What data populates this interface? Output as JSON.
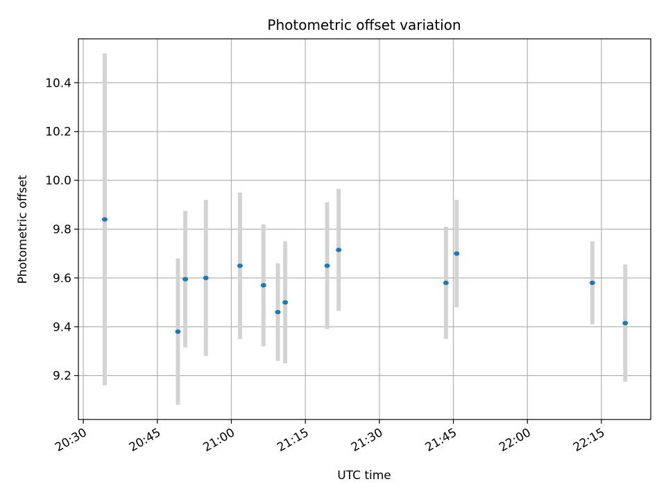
{
  "chart_data": {
    "type": "scatter",
    "title": "Photometric offset variation",
    "xlabel": "UTC time",
    "ylabel": "Photometric offset",
    "x_ticks": [
      "20:30",
      "20:45",
      "21:00",
      "21:15",
      "21:30",
      "21:45",
      "22:00",
      "22:15"
    ],
    "y_ticks": [
      "9.2",
      "9.4",
      "9.6",
      "9.8",
      "10.0",
      "10.2",
      "10.4"
    ],
    "xlim": [
      "20:29",
      "22:25"
    ],
    "ylim": [
      9.02,
      10.58
    ],
    "grid": true,
    "colors": {
      "point": "#1f77b4",
      "errorbar": "#d3d3d3",
      "grid": "#b0b0b0"
    },
    "series": [
      {
        "points": [
          {
            "x": "20:34:20",
            "y": 9.84,
            "yerr": 0.68
          },
          {
            "x": "20:49:10",
            "y": 9.38,
            "yerr": 0.3
          },
          {
            "x": "20:50:40",
            "y": 9.595,
            "yerr": 0.28
          },
          {
            "x": "20:54:50",
            "y": 9.6,
            "yerr": 0.32
          },
          {
            "x": "21:01:45",
            "y": 9.65,
            "yerr": 0.3
          },
          {
            "x": "21:06:30",
            "y": 9.57,
            "yerr": 0.25
          },
          {
            "x": "21:09:25",
            "y": 9.46,
            "yerr": 0.2
          },
          {
            "x": "21:10:55",
            "y": 9.5,
            "yerr": 0.25
          },
          {
            "x": "21:19:25",
            "y": 9.65,
            "yerr": 0.26
          },
          {
            "x": "21:21:45",
            "y": 9.715,
            "yerr": 0.25
          },
          {
            "x": "21:43:30",
            "y": 9.58,
            "yerr": 0.23
          },
          {
            "x": "21:45:40",
            "y": 9.7,
            "yerr": 0.22
          },
          {
            "x": "22:13:10",
            "y": 9.58,
            "yerr": 0.17
          },
          {
            "x": "22:19:50",
            "y": 9.415,
            "yerr": 0.24
          }
        ]
      }
    ]
  }
}
